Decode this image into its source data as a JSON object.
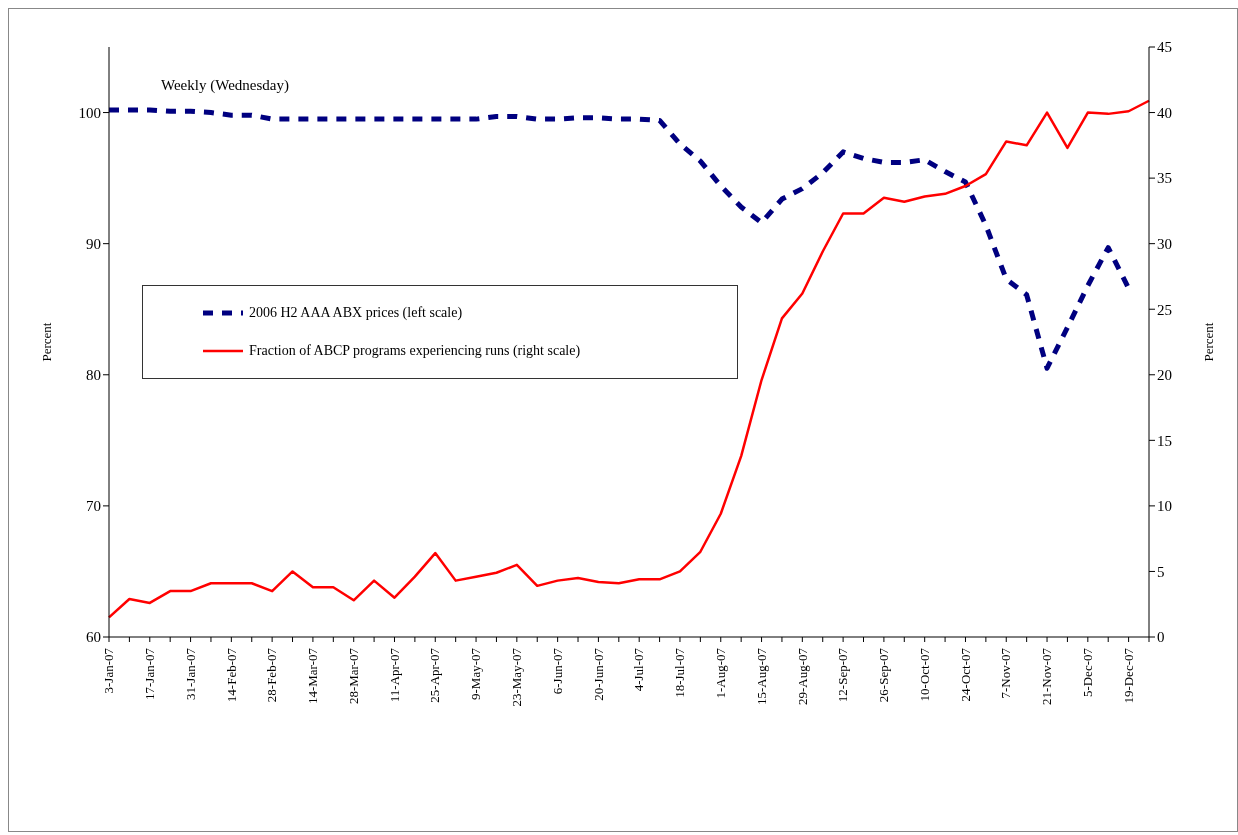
{
  "chart_data": {
    "type": "line",
    "annotations": [
      "Weekly (Wednesday)"
    ],
    "ylabel": "Percent",
    "y2label": "Percent",
    "categories": [
      "3-Jan-07",
      null,
      "17-Jan-07",
      null,
      "31-Jan-07",
      null,
      "14-Feb-07",
      null,
      "28-Feb-07",
      null,
      "14-Mar-07",
      null,
      "28-Mar-07",
      null,
      "11-Apr-07",
      null,
      "25-Apr-07",
      null,
      "9-May-07",
      null,
      "23-May-07",
      null,
      "6-Jun-07",
      null,
      "20-Jun-07",
      null,
      "4-Jul-07",
      null,
      "18-Jul-07",
      null,
      "1-Aug-07",
      null,
      "15-Aug-07",
      null,
      "29-Aug-07",
      null,
      "12-Sep-07",
      null,
      "26-Sep-07",
      null,
      "10-Oct-07",
      null,
      "24-Oct-07",
      null,
      "7-Nov-07",
      null,
      "21-Nov-07",
      null,
      "5-Dec-07",
      null,
      "19-Dec-07",
      null
    ],
    "series": [
      {
        "name": "2006 H2 AAA ABX prices (left scale)",
        "color": "#000080",
        "line_style": "dashed",
        "values": [
          100.2,
          100.2,
          100.2,
          100.1,
          100.1,
          100.0,
          99.8,
          99.8,
          99.5,
          99.5,
          99.5,
          99.5,
          99.5,
          99.5,
          99.5,
          99.5,
          99.5,
          99.5,
          99.5,
          99.7,
          99.7,
          99.5,
          99.5,
          99.6,
          99.6,
          99.5,
          99.5,
          99.4,
          97.6,
          96.3,
          94.4,
          92.8,
          91.6,
          93.4,
          94.2,
          95.4,
          97.0,
          96.5,
          96.2,
          96.2,
          96.4,
          95.5,
          94.7,
          91.4,
          87.3,
          86.1,
          80.5,
          83.6,
          86.8,
          89.7,
          86.6,
          null
        ]
      },
      {
        "name": "Fraction of ABCP programs experiencing runs (right scale)",
        "color": "#ff0000",
        "line_style": "solid",
        "axis": "y2",
        "values": [
          1.5,
          2.9,
          2.6,
          3.5,
          3.5,
          4.1,
          4.1,
          4.1,
          3.5,
          5.0,
          3.8,
          3.8,
          2.8,
          4.3,
          3.0,
          4.6,
          6.4,
          4.3,
          4.6,
          4.9,
          5.5,
          3.9,
          4.3,
          4.5,
          4.2,
          4.1,
          4.4,
          4.4,
          5.0,
          6.5,
          9.4,
          13.8,
          19.6,
          24.3,
          26.2,
          29.4,
          32.3,
          32.3,
          33.5,
          33.2,
          33.6,
          33.8,
          34.4,
          35.3,
          37.8,
          37.5,
          40.0,
          37.3,
          40.0,
          39.9,
          40.1,
          40.9
        ]
      }
    ],
    "ylim": [
      60,
      105
    ],
    "yticks": [
      60,
      70,
      80,
      90,
      100
    ],
    "y2lim": [
      0,
      45
    ],
    "y2ticks": [
      0,
      5,
      10,
      15,
      20,
      25,
      30,
      35,
      40,
      45
    ],
    "grid": false,
    "legend": "left",
    "marker": "none"
  }
}
